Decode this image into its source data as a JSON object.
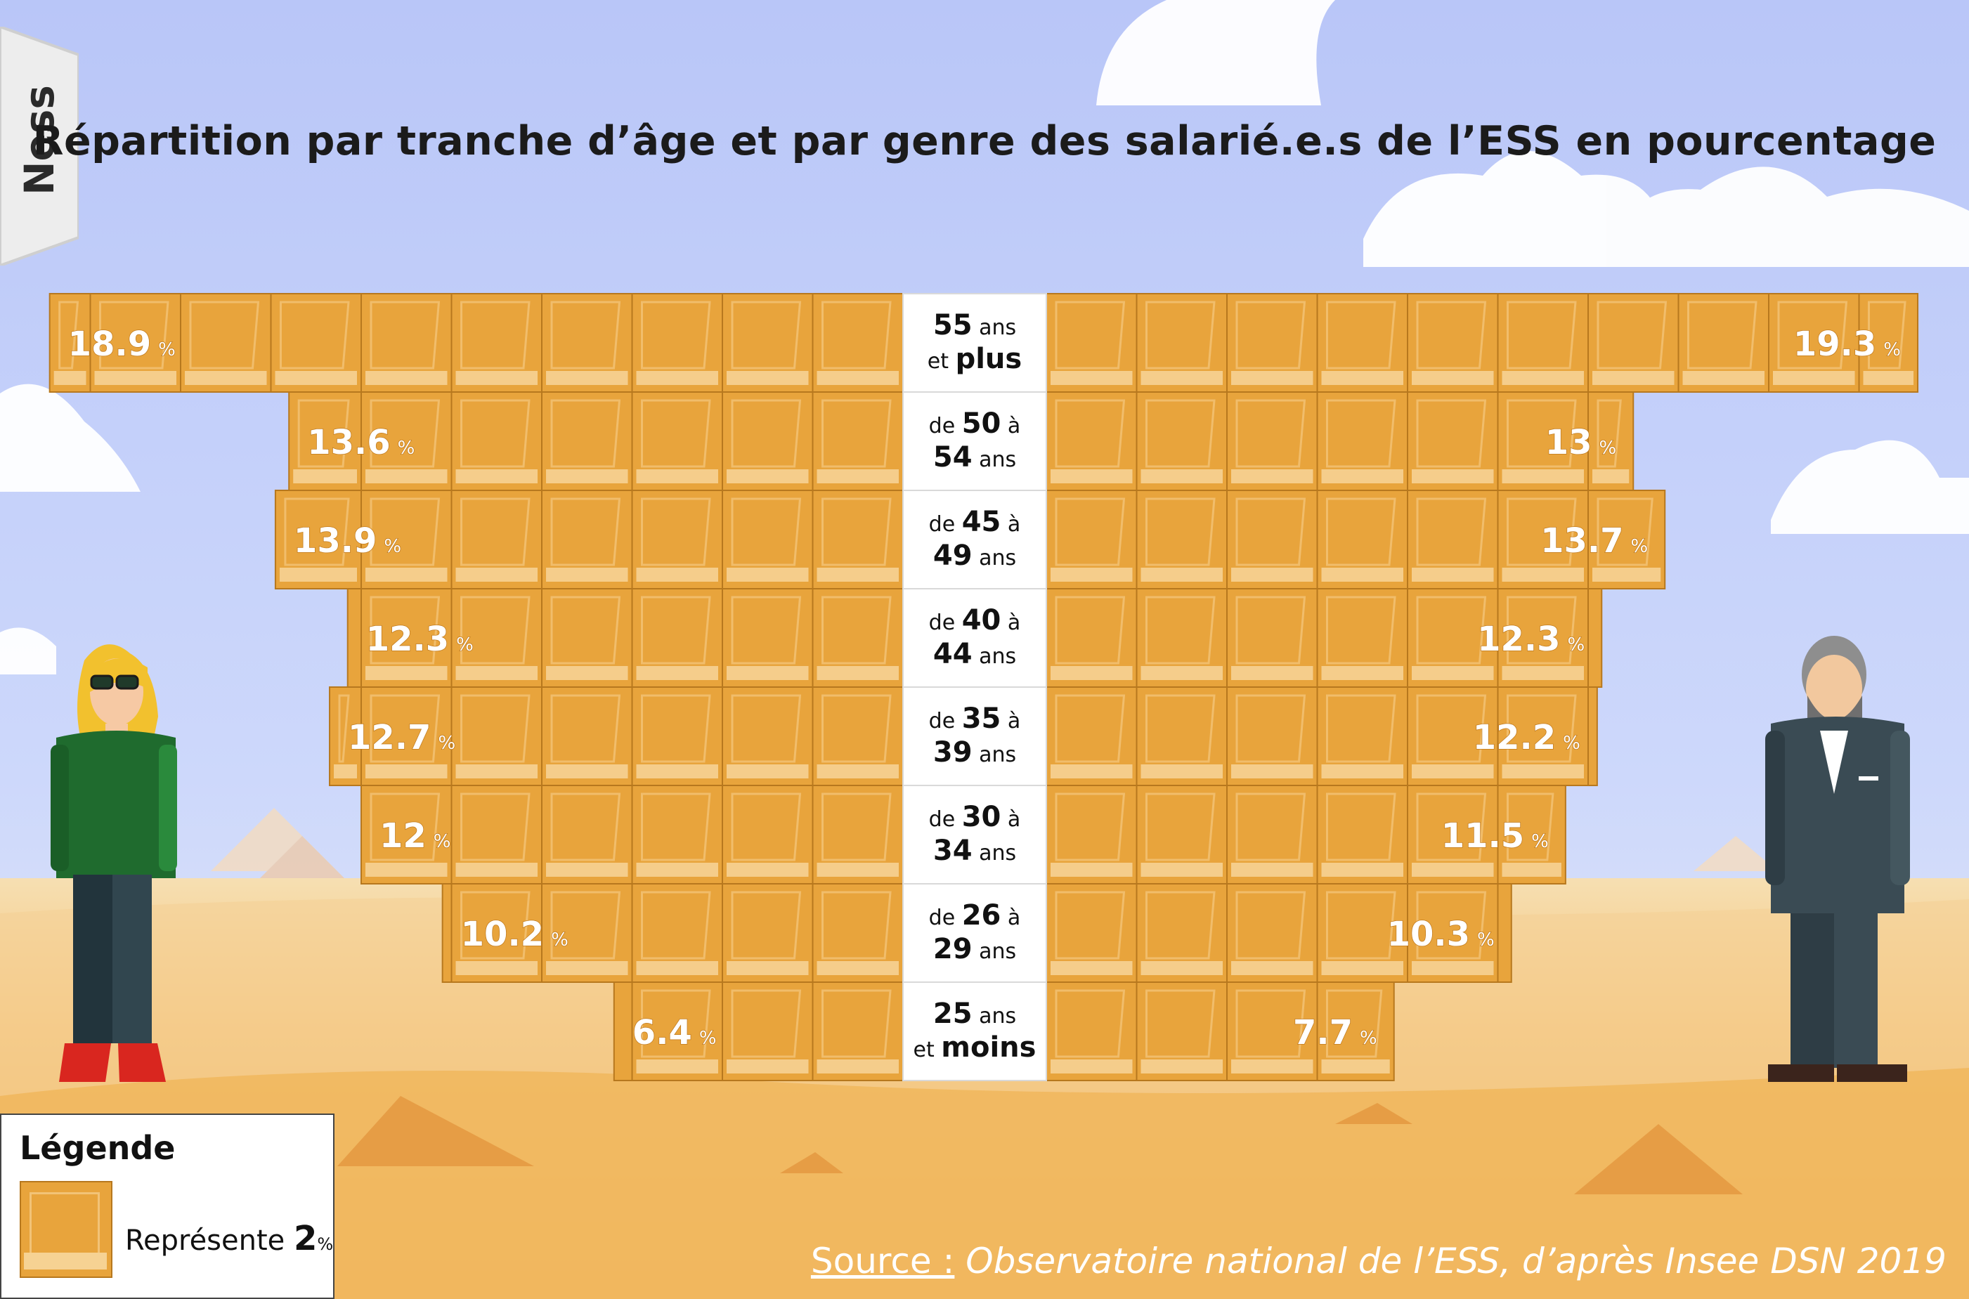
{
  "title": "Répartition par tranche d’âge et par genre des salarié.e.s de l’ESS en pourcentage",
  "logo": "Ness",
  "legend": {
    "title": "Légende",
    "text_prefix": "Représente",
    "value": "2",
    "unit": "%"
  },
  "source": {
    "label": "Source :",
    "text": "Observatoire national de l’ESS, d’après Insee DSN 2019"
  },
  "chart_data": {
    "type": "bar",
    "unit": "%",
    "orientation": "pyramid",
    "block_value": 2,
    "categories": [
      {
        "lines": [
          {
            "bold": "55",
            "normal": "ans"
          },
          {
            "normal": "et",
            "bold": "plus"
          }
        ]
      },
      {
        "lines": [
          {
            "normal": "de",
            "bold": "50",
            "tail": "à"
          },
          {
            "bold": "54",
            "normal": "ans"
          }
        ]
      },
      {
        "lines": [
          {
            "normal": "de",
            "bold": "45",
            "tail": "à"
          },
          {
            "bold": "49",
            "normal": "ans"
          }
        ]
      },
      {
        "lines": [
          {
            "normal": "de",
            "bold": "40",
            "tail": "à"
          },
          {
            "bold": "44",
            "normal": "ans"
          }
        ]
      },
      {
        "lines": [
          {
            "normal": "de",
            "bold": "35",
            "tail": "à"
          },
          {
            "bold": "39",
            "normal": "ans"
          }
        ]
      },
      {
        "lines": [
          {
            "normal": "de",
            "bold": "30",
            "tail": "à"
          },
          {
            "bold": "34",
            "normal": "ans"
          }
        ]
      },
      {
        "lines": [
          {
            "normal": "de",
            "bold": "26",
            "tail": "à"
          },
          {
            "bold": "29",
            "normal": "ans"
          }
        ]
      },
      {
        "lines": [
          {
            "bold": "25",
            "normal": "ans"
          },
          {
            "normal": "et",
            "bold": "moins"
          }
        ]
      }
    ],
    "series": [
      {
        "side": "left",
        "values": [
          18.9,
          13.6,
          13.9,
          12.3,
          12.7,
          12,
          10.2,
          6.4
        ]
      },
      {
        "side": "right",
        "values": [
          19.3,
          13,
          13.7,
          12.3,
          12.2,
          11.5,
          10.3,
          7.7
        ]
      }
    ],
    "colors": {
      "block": "#e8a43c",
      "block_border": "#b7781e",
      "block_light": "#f6d293",
      "label_bg": "#ffffff",
      "value_text": "#ffffff"
    }
  }
}
